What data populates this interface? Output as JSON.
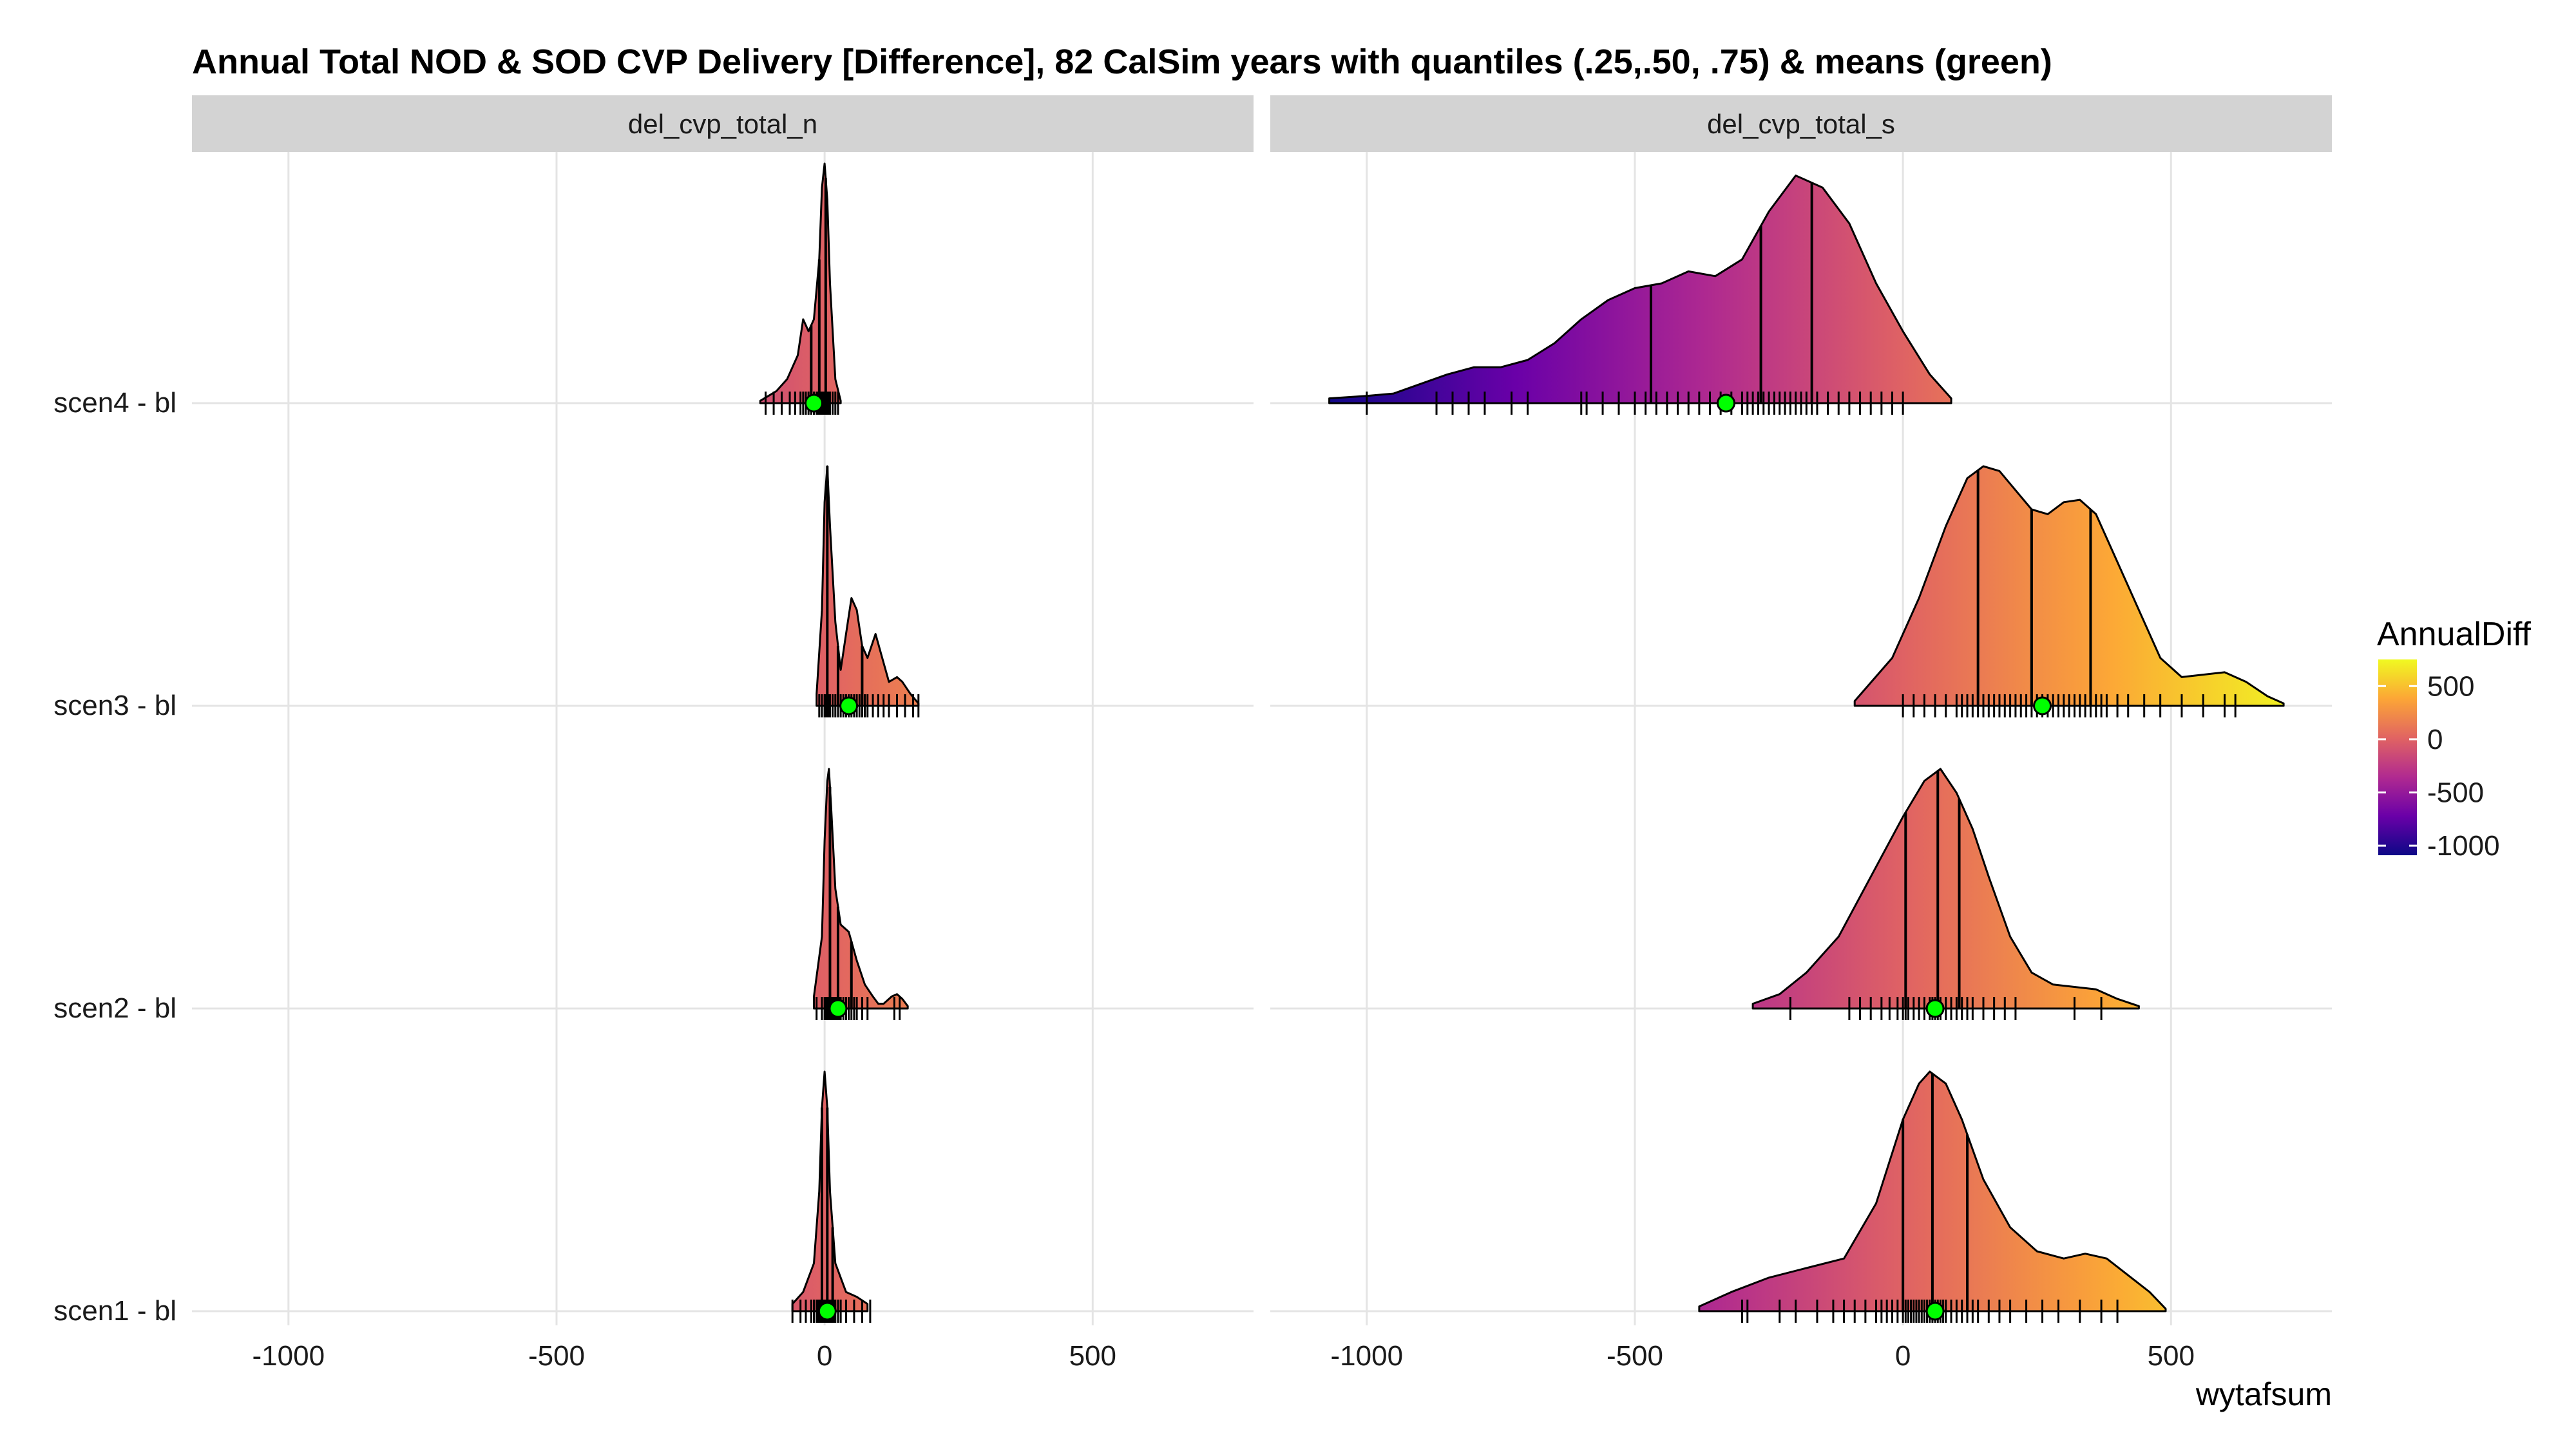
{
  "chart_data": {
    "type": "ridgeline",
    "title": "Annual Total NOD & SOD CVP Delivery [Difference], 82 CalSim years with quantiles (.25,.50, .75) & means (green)",
    "xlabel": "wytafsum",
    "ylabel": "",
    "xlim": [
      -1180,
      800
    ],
    "x_ticks": [
      -1000,
      -500,
      0,
      500
    ],
    "x_tick_labels": [
      "-1000",
      "-500",
      "0",
      "500"
    ],
    "rows": [
      "scen1 - bl",
      "scen2 - bl",
      "scen3 - bl",
      "scen4 - bl"
    ],
    "grid": true,
    "legend": {
      "title": "AnnualDiff",
      "position": "right",
      "range": [
        -1090,
        750
      ],
      "tick_values": [
        500,
        0,
        -500,
        -1000
      ],
      "tick_labels": [
        "500",
        "0",
        "-500",
        "-1000"
      ],
      "colors": [
        "#0d0887",
        "#6a00a8",
        "#b12a90",
        "#e16462",
        "#fca636",
        "#f0f921"
      ]
    },
    "mean_color": "#00ff00",
    "panels": [
      {
        "strip": "del_cvp_total_n",
        "series": [
          {
            "row": "scen1 - bl",
            "density_x": [
              -60,
              -40,
              -20,
              -10,
              -5,
              0,
              5,
              10,
              20,
              40,
              60,
              80
            ],
            "density_y": [
              0.03,
              0.08,
              0.2,
              0.5,
              0.85,
              1.0,
              0.85,
              0.5,
              0.2,
              0.08,
              0.06,
              0.03
            ],
            "quantiles": [
              -5,
              5,
              15
            ],
            "mean": 5,
            "rug": [
              -60,
              -45,
              -35,
              -25,
              -20,
              -15,
              -12,
              -10,
              -8,
              -6,
              -5,
              -3,
              -2,
              0,
              1,
              2,
              3,
              4,
              5,
              6,
              8,
              10,
              12,
              15,
              18,
              20,
              25,
              30,
              40,
              55,
              70,
              85
            ]
          },
          {
            "row": "scen2 - bl",
            "density_x": [
              -20,
              -5,
              0,
              5,
              8,
              12,
              20,
              30,
              45,
              60,
              75,
              90,
              100,
              110,
              125,
              135,
              145,
              155
            ],
            "density_y": [
              0.05,
              0.3,
              0.7,
              0.95,
              1.0,
              0.85,
              0.5,
              0.35,
              0.32,
              0.2,
              0.1,
              0.05,
              0.02,
              0.02,
              0.05,
              0.06,
              0.04,
              0.01
            ],
            "quantiles": [
              10,
              25,
              50
            ],
            "mean": 25,
            "rug": [
              -15,
              -5,
              0,
              2,
              5,
              7,
              8,
              10,
              12,
              15,
              18,
              20,
              22,
              25,
              28,
              30,
              35,
              40,
              45,
              50,
              55,
              60,
              70,
              80,
              130,
              140
            ]
          },
          {
            "row": "scen3 - bl",
            "density_x": [
              -15,
              -5,
              0,
              5,
              10,
              20,
              30,
              40,
              50,
              60,
              70,
              80,
              95,
              105,
              120,
              135,
              145,
              160,
              175
            ],
            "density_y": [
              0.05,
              0.4,
              0.85,
              1.0,
              0.75,
              0.35,
              0.15,
              0.3,
              0.45,
              0.4,
              0.25,
              0.2,
              0.3,
              0.22,
              0.1,
              0.12,
              0.1,
              0.05,
              0.01
            ],
            "quantiles": [
              5,
              25,
              70
            ],
            "mean": 45,
            "rug": [
              -10,
              -5,
              0,
              2,
              5,
              8,
              10,
              15,
              20,
              25,
              30,
              35,
              40,
              45,
              50,
              55,
              60,
              65,
              70,
              75,
              80,
              90,
              100,
              110,
              120,
              135,
              150,
              165,
              175
            ]
          },
          {
            "row": "scen4 - bl",
            "density_x": [
              -120,
              -90,
              -70,
              -50,
              -40,
              -30,
              -20,
              -10,
              -5,
              0,
              5,
              10,
              20,
              30
            ],
            "density_y": [
              0.01,
              0.05,
              0.1,
              0.2,
              0.35,
              0.3,
              0.35,
              0.6,
              0.9,
              1.0,
              0.85,
              0.5,
              0.1,
              0.01
            ],
            "quantiles": [
              -25,
              -10,
              2
            ],
            "mean": -20,
            "rug": [
              -110,
              -95,
              -80,
              -65,
              -55,
              -45,
              -40,
              -35,
              -30,
              -25,
              -20,
              -15,
              -12,
              -10,
              -8,
              -5,
              -3,
              0,
              3,
              5,
              8,
              10,
              15,
              20,
              25
            ]
          }
        ]
      },
      {
        "strip": "del_cvp_total_s",
        "series": [
          {
            "row": "scen1 - bl",
            "density_x": [
              -380,
              -320,
              -250,
              -180,
              -110,
              -50,
              0,
              30,
              50,
              80,
              110,
              150,
              200,
              250,
              300,
              340,
              380,
              420,
              460,
              490
            ],
            "density_y": [
              0.02,
              0.08,
              0.14,
              0.18,
              0.22,
              0.45,
              0.8,
              0.95,
              1.0,
              0.95,
              0.8,
              0.55,
              0.35,
              0.25,
              0.22,
              0.24,
              0.22,
              0.15,
              0.08,
              0.01
            ],
            "quantiles": [
              0,
              55,
              120
            ],
            "mean": 60,
            "rug": [
              -300,
              -290,
              -230,
              -200,
              -160,
              -130,
              -110,
              -90,
              -70,
              -50,
              -40,
              -30,
              -20,
              -10,
              0,
              5,
              10,
              15,
              20,
              25,
              30,
              35,
              40,
              45,
              50,
              55,
              60,
              65,
              70,
              75,
              80,
              90,
              100,
              110,
              120,
              130,
              140,
              160,
              180,
              200,
              230,
              260,
              290,
              330,
              370,
              400
            ]
          },
          {
            "row": "scen2 - bl",
            "density_x": [
              -280,
              -230,
              -180,
              -120,
              -60,
              0,
              40,
              70,
              100,
              130,
              160,
              200,
              240,
              280,
              320,
              360,
              400,
              440
            ],
            "density_y": [
              0.02,
              0.06,
              0.15,
              0.3,
              0.55,
              0.8,
              0.95,
              1.0,
              0.9,
              0.75,
              0.55,
              0.3,
              0.15,
              0.1,
              0.09,
              0.08,
              0.04,
              0.01
            ],
            "quantiles": [
              5,
              65,
              105
            ],
            "mean": 60,
            "rug": [
              -210,
              -100,
              -80,
              -60,
              -40,
              -25,
              -10,
              0,
              5,
              10,
              20,
              30,
              40,
              50,
              55,
              60,
              65,
              70,
              80,
              90,
              100,
              110,
              120,
              130,
              150,
              170,
              190,
              210,
              320,
              370
            ]
          },
          {
            "row": "scen3 - bl",
            "density_x": [
              -90,
              -20,
              30,
              80,
              120,
              150,
              180,
              210,
              240,
              270,
              300,
              330,
              360,
              400,
              440,
              480,
              520,
              560,
              600,
              640,
              680,
              710
            ],
            "density_y": [
              0.02,
              0.2,
              0.45,
              0.75,
              0.95,
              1.0,
              0.98,
              0.9,
              0.82,
              0.8,
              0.85,
              0.86,
              0.8,
              0.6,
              0.4,
              0.2,
              0.12,
              0.13,
              0.14,
              0.1,
              0.04,
              0.01
            ],
            "quantiles": [
              140,
              240,
              350
            ],
            "mean": 260,
            "rug": [
              0,
              20,
              40,
              60,
              80,
              100,
              110,
              120,
              130,
              140,
              150,
              160,
              170,
              180,
              190,
              200,
              210,
              220,
              230,
              240,
              250,
              260,
              270,
              280,
              290,
              300,
              310,
              320,
              330,
              340,
              350,
              360,
              370,
              380,
              400,
              420,
              450,
              480,
              520,
              560,
              600,
              620
            ]
          },
          {
            "row": "scen4 - bl",
            "density_x": [
              -1070,
              -1000,
              -950,
              -900,
              -850,
              -800,
              -750,
              -700,
              -650,
              -600,
              -550,
              -500,
              -450,
              -400,
              -350,
              -300,
              -250,
              -200,
              -150,
              -100,
              -50,
              0,
              50,
              90
            ],
            "density_y": [
              0.02,
              0.03,
              0.04,
              0.08,
              0.12,
              0.15,
              0.15,
              0.18,
              0.25,
              0.35,
              0.43,
              0.48,
              0.5,
              0.55,
              0.53,
              0.6,
              0.8,
              0.95,
              0.9,
              0.75,
              0.5,
              0.3,
              0.12,
              0.02
            ],
            "quantiles": [
              -470,
              -265,
              -170
            ],
            "mean": -330,
            "rug": [
              -1000,
              -870,
              -840,
              -810,
              -780,
              -730,
              -700,
              -600,
              -590,
              -560,
              -530,
              -500,
              -480,
              -460,
              -440,
              -420,
              -400,
              -380,
              -360,
              -340,
              -320,
              -300,
              -290,
              -280,
              -270,
              -260,
              -250,
              -240,
              -230,
              -220,
              -210,
              -200,
              -190,
              -180,
              -170,
              -160,
              -140,
              -120,
              -100,
              -80,
              -60,
              -40,
              -20,
              0
            ]
          }
        ]
      }
    ]
  }
}
